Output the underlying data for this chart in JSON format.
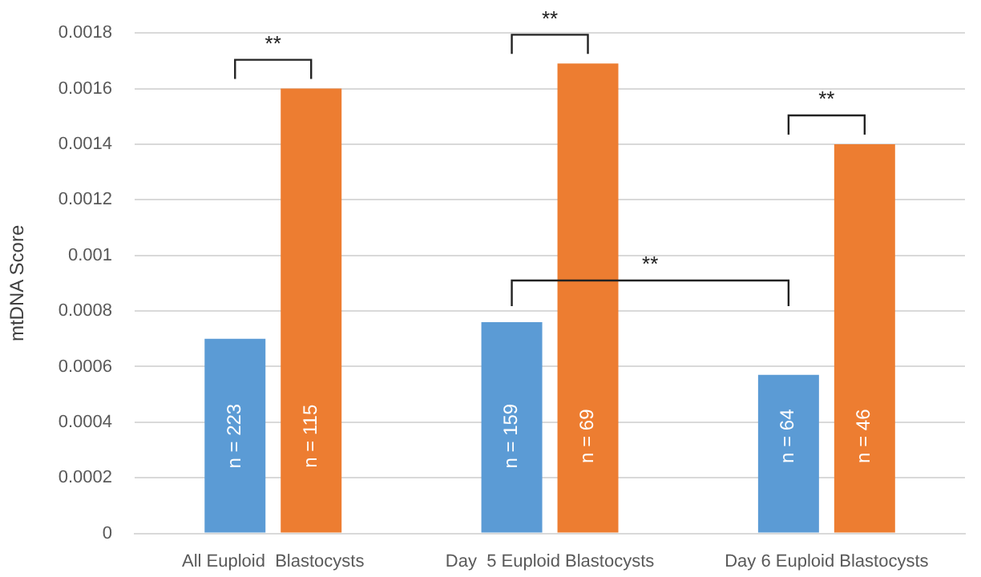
{
  "chart_data": {
    "type": "bar",
    "ylabel": "mtDNA Score",
    "categories": [
      "All Euploid  Blastocysts",
      "Day  5 Euploid Blastocysts",
      "Day 6 Euploid Blastocysts"
    ],
    "series": [
      {
        "color": "#5b9bd5",
        "values": [
          0.0007,
          0.00076,
          0.00057
        ]
      },
      {
        "color": "#ed7d31",
        "values": [
          0.0016,
          0.00169,
          0.0014
        ]
      }
    ],
    "ylim": [
      0,
      0.0018
    ],
    "yticks": [
      0,
      0.0002,
      0.0004,
      0.0006,
      0.0008,
      0.001,
      0.0012,
      0.0014,
      0.0016,
      0.0018
    ],
    "grid": "y",
    "legend": false,
    "annotations": [
      "**",
      "**",
      "**",
      "**",
      {
        "text": "n = 223",
        "x": "All Euploid  Blastocysts",
        "y": 0.00035
      },
      {
        "text": "n = 115",
        "x": "All Euploid  Blastocysts",
        "y": 0.00035
      },
      {
        "text": "n = 159",
        "x": "Day  5 Euploid Blastocysts",
        "y": 0.00035
      },
      {
        "text": "n = 69",
        "x": "Day  5 Euploid Blastocysts",
        "y": 0.00035
      },
      {
        "text": "n = 64",
        "x": "Day 6 Euploid Blastocysts",
        "y": 0.00035
      },
      {
        "text": "n = 46",
        "x": "Day 6 Euploid Blastocysts",
        "y": 0.00035
      }
    ]
  }
}
